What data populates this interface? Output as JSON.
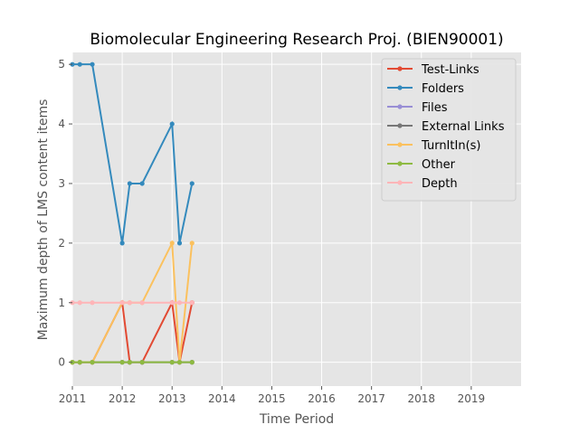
{
  "chart_data": {
    "type": "line",
    "title": "Biomolecular Engineering Research Proj. (BIEN90001)",
    "xlabel": "Time Period",
    "ylabel": "Maximum depth of LMS content items",
    "xlim": [
      2011,
      2020
    ],
    "ylim": [
      -0.4,
      5.2
    ],
    "x_ticks": [
      "2011",
      "2012",
      "2013",
      "2014",
      "2015",
      "2016",
      "2017",
      "2018",
      "2019"
    ],
    "y_ticks": [
      "0",
      "1",
      "2",
      "3",
      "4",
      "5"
    ],
    "grid": true,
    "legend_position": "top-right",
    "x": [
      2011.0,
      2011.15,
      2011.4,
      2012.0,
      2012.15,
      2012.4,
      2013.0,
      2013.15,
      2013.4
    ],
    "series": [
      {
        "name": "Test-Links",
        "color": "#E24A33",
        "values": [
          0,
          0,
          0,
          1,
          0,
          0,
          1,
          0,
          1
        ]
      },
      {
        "name": "Folders",
        "color": "#348ABD",
        "values": [
          5,
          5,
          5,
          2,
          3,
          3,
          4,
          2,
          3
        ]
      },
      {
        "name": "Files",
        "color": "#988ED5",
        "values": [
          0,
          0,
          0,
          0,
          0,
          0,
          0,
          0,
          0
        ]
      },
      {
        "name": "External Links",
        "color": "#777777",
        "values": [
          0,
          0,
          0,
          0,
          0,
          0,
          0,
          0,
          0
        ]
      },
      {
        "name": "TurnItIn(s)",
        "color": "#FBC15E",
        "values": [
          0,
          0,
          0,
          1,
          1,
          1,
          2,
          0,
          2
        ]
      },
      {
        "name": "Other",
        "color": "#8EBA42",
        "values": [
          0,
          0,
          0,
          0,
          0,
          0,
          0,
          0,
          0
        ]
      },
      {
        "name": "Depth",
        "color": "#FFB5B8",
        "values": [
          1,
          1,
          1,
          1,
          1,
          1,
          1,
          1,
          1
        ]
      }
    ]
  },
  "colors": {
    "plot_background": "#E5E5E5",
    "grid": "#FFFFFF"
  }
}
